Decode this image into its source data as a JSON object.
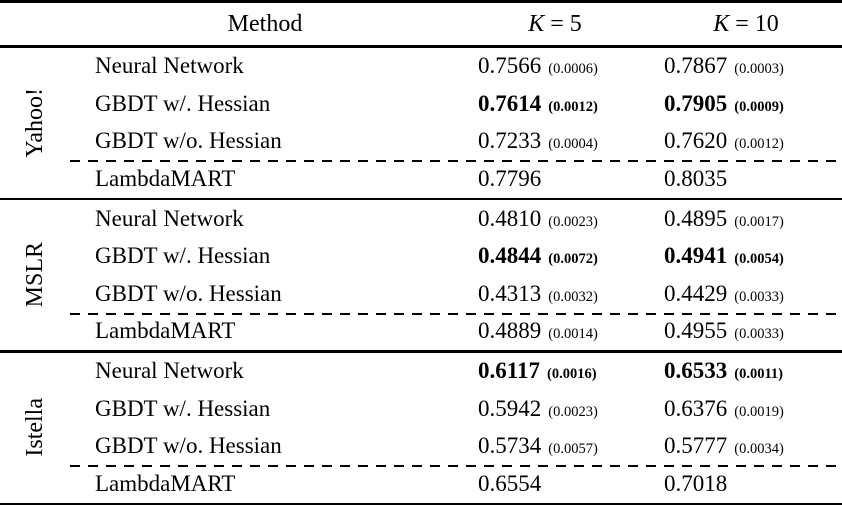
{
  "table": {
    "header": {
      "method": "Method",
      "k5": "K = 5",
      "k10": "K = 10"
    },
    "groups": [
      {
        "dataset": "Yahoo!",
        "rows": [
          {
            "method": "Neural Network",
            "k5": "0.7566",
            "k5_std": "(0.0006)",
            "k10": "0.7867",
            "k10_std": "(0.0003)",
            "highlight": false
          },
          {
            "method": "GBDT w/. Hessian",
            "k5": "0.7614",
            "k5_std": "(0.0012)",
            "k10": "0.7905",
            "k10_std": "(0.0009)",
            "highlight": true
          },
          {
            "method": "GBDT w/o. Hessian",
            "k5": "0.7233",
            "k5_std": "(0.0004)",
            "k10": "0.7620",
            "k10_std": "(0.0012)",
            "highlight": false
          },
          {
            "method": "LambdaMART",
            "k5": "0.7796",
            "k5_std": "",
            "k10": "0.8035",
            "k10_std": "",
            "highlight": false
          }
        ]
      },
      {
        "dataset": "MSLR",
        "rows": [
          {
            "method": "Neural Network",
            "k5": "0.4810",
            "k5_std": "(0.0023)",
            "k10": "0.4895",
            "k10_std": "(0.0017)",
            "highlight": false
          },
          {
            "method": "GBDT w/. Hessian",
            "k5": "0.4844",
            "k5_std": "(0.0072)",
            "k10": "0.4941",
            "k10_std": "(0.0054)",
            "highlight": true
          },
          {
            "method": "GBDT w/o. Hessian",
            "k5": "0.4313",
            "k5_std": "(0.0032)",
            "k10": "0.4429",
            "k10_std": "(0.0033)",
            "highlight": false
          },
          {
            "method": "LambdaMART",
            "k5": "0.4889",
            "k5_std": "(0.0014)",
            "k10": "0.4955",
            "k10_std": "(0.0033)",
            "highlight": false
          }
        ]
      },
      {
        "dataset": "Istella",
        "rows": [
          {
            "method": "Neural Network",
            "k5": "0.6117",
            "k5_std": "(0.0016)",
            "k10": "0.6533",
            "k10_std": "(0.0011)",
            "highlight": true
          },
          {
            "method": "GBDT w/. Hessian",
            "k5": "0.5942",
            "k5_std": "(0.0023)",
            "k10": "0.6376",
            "k10_std": "(0.0019)",
            "highlight": false
          },
          {
            "method": "GBDT w/o. Hessian",
            "k5": "0.5734",
            "k5_std": "(0.0057)",
            "k10": "0.5777",
            "k10_std": "(0.0034)",
            "highlight": false
          },
          {
            "method": "LambdaMART",
            "k5": "0.6554",
            "k5_std": "",
            "k10": "0.7018",
            "k10_std": "",
            "highlight": false
          }
        ]
      }
    ]
  },
  "colors": {
    "text": "#000000",
    "background": "#ffffff"
  }
}
